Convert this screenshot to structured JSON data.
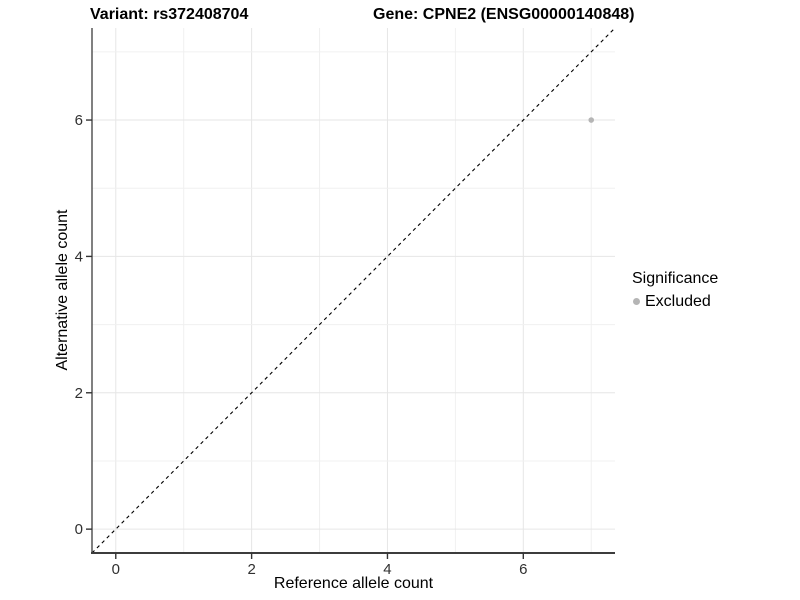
{
  "header": {
    "title_left": "Variant: rs372408704",
    "title_right": "Gene: CPNE2 (ENSG00000140848)"
  },
  "legend": {
    "title": "Significance",
    "items": [
      {
        "label": "Excluded",
        "color": "#b5b5b5"
      }
    ]
  },
  "chart_data": {
    "type": "scatter",
    "title": "Variant: rs372408704 | Gene: CPNE2 (ENSG00000140848)",
    "xlabel": "Reference allele count",
    "ylabel": "Alternative allele count",
    "xlim": [
      -0.35,
      7.35
    ],
    "ylim": [
      -0.35,
      7.35
    ],
    "x_major_ticks": [
      0,
      2,
      4,
      6
    ],
    "y_major_ticks": [
      0,
      2,
      4,
      6
    ],
    "x_gridlines": [
      0,
      1,
      2,
      3,
      4,
      5,
      6,
      7
    ],
    "y_gridlines": [
      0,
      1,
      2,
      3,
      4,
      5,
      6,
      7
    ],
    "grid": true,
    "legend_position": "right",
    "legend_title": "Significance",
    "series": [
      {
        "name": "Excluded",
        "color": "#b5b5b5",
        "points": [
          {
            "x": 7,
            "y": 6
          }
        ]
      }
    ],
    "reference_line": {
      "equation": "y = x",
      "style": "dashed",
      "color": "#000000"
    },
    "colors": {
      "gridline_major": "#e6e6e6",
      "gridline_minor": "#f0f0f0",
      "axis_line": "#3c3c3c",
      "tick_label": "#303030"
    }
  }
}
